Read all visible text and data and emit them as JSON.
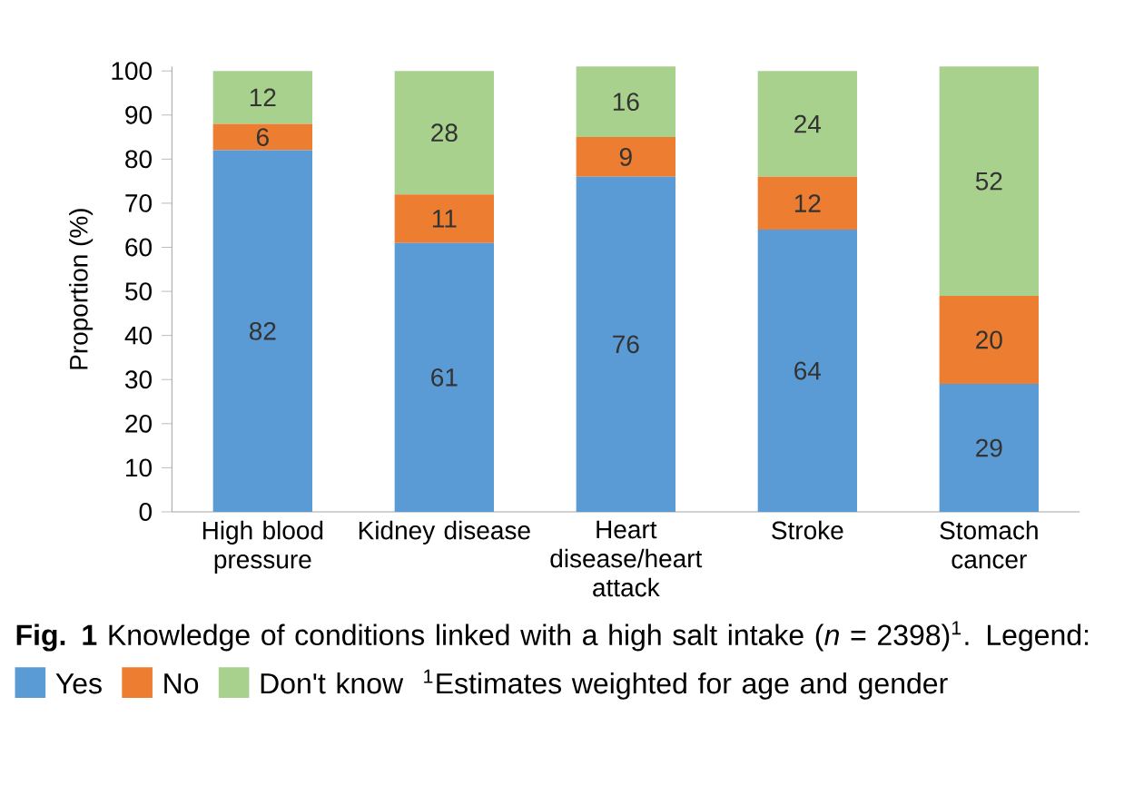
{
  "chart_data": {
    "type": "bar",
    "stacked": true,
    "title": "**Fig. 1** Knowledge of conditions linked with a high salt intake (*n* = 2398)$^{1}$.",
    "legend_title": "Legend:",
    "ylabel": "Proportion (%)",
    "categories": [
      "High blood pressure",
      "Kidney disease",
      "Heart disease/heart attack",
      "Stroke",
      "Stomach cancer"
    ],
    "series": [
      {
        "name": "Yes",
        "color": "#5b9bd5",
        "values": [
          82,
          61,
          76,
          64,
          29
        ]
      },
      {
        "name": "No",
        "color": "#ed7d31",
        "values": [
          6,
          11,
          9,
          12,
          20
        ]
      },
      {
        "name": "Don't know",
        "color": "#a9d18e",
        "values": [
          12,
          28,
          16,
          24,
          52
        ]
      }
    ],
    "ylim": [
      0,
      101
    ],
    "yticks": [
      0,
      10,
      20,
      30,
      40,
      50,
      60,
      70,
      80,
      90,
      100
    ],
    "data_labels": true,
    "legend": "bottom",
    "grid": false,
    "annotations": [
      "$^{1}$Estimates weighted for age and gender"
    ]
  }
}
